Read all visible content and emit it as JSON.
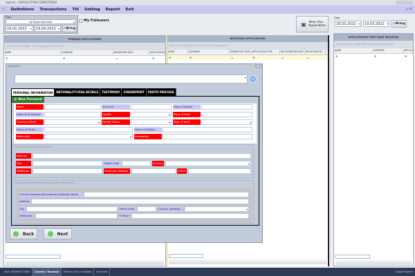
{
  "window": {
    "title": "Ajanter - [APPLICATION CONDITIONS]"
  },
  "menu": [
    "Definitions",
    "Transactions",
    "Till",
    "Setting",
    "Report",
    "Exit"
  ],
  "filter": {
    "group_label": "Date",
    "date_type": "By Registration Date",
    "from": "19.02.2022",
    "to": "19.04.2022",
    "bring": "Bring",
    "my_followers": "My Followers"
  },
  "new_visa": "New Visa Application",
  "pending": {
    "title": "PENDING APPLICATIONS",
    "hint": "Drag a column header here to group by that column",
    "columns": [
      "NAME",
      "SURNAME",
      "DEPARTURE DATE",
      "APPLICATION"
    ]
  },
  "resulting": {
    "title": "RESULTING APPLICATIONS",
    "hint": "Drag a column header here to group by that column",
    "columns": [
      "NAME",
      "SURNAME",
      "DEPARTURE DATE",
      "APPLICATION TYPE",
      "REGISTRATION DATE",
      "REGISTRATION"
    ]
  },
  "right": {
    "group_label": "Date",
    "from": "18.03.2022",
    "to": "19.03.2022",
    "bring": "Bring",
    "title": "APPLICATIONS THAT HAVE RESULTED",
    "hint": "Drag a column header here to group by that column",
    "columns": [
      "NAME",
      "SURNAME",
      "APPLICA"
    ]
  },
  "dialog": {
    "title": "Application",
    "tabs": [
      "PERSONAL INFORMATION",
      "NATIONALITY-VISA DETAILS",
      "TESTIMONY",
      "FINGERPRINT",
      "PHOTO PROCESS"
    ],
    "active_tab": 0,
    "new_personel": "New Personel",
    "personal": {
      "name": "Name",
      "surname": "Surname",
      "other_surname": "Other Surname",
      "national_id": "National Id Number",
      "gender": "Gender",
      "place_of_birth": "Place of Birth",
      "country_of_birth": "Country of Birth",
      "marital_status": "Marital Status",
      "date_of_birth": "Date Of Birth",
      "name_of_father": "Name of Father",
      "name_of_mother": "Name of Mother",
      "nationality": "Nationality",
      "occupation": "Occupation"
    },
    "contact": {
      "title": "Contact Information to Reach You",
      "address": "Address",
      "city": "City",
      "postal_code": "Postal Code",
      "country": "Country",
      "telephone": "Telephone",
      "telephone_mobile": "Telephone (Mobile)",
      "email": "E-Mail"
    },
    "employer": {
      "title": "Current Employer/Educational Institution Information",
      "name": "Current Employer/Educational Institution Name",
      "address": "Address",
      "city": "City",
      "postal_code": "Postal Code",
      "country": "Country (Address)",
      "telephone": "Telephone",
      "eposta": "E-Posta"
    },
    "back": "Back",
    "next": "Next"
  },
  "status": {
    "user": "User: MAHMUT CURA",
    "country": "Country: Tanzania",
    "branch": "Branch: Dar es Salaam",
    "licence": "Licenced",
    "style": "Choose Style ▾"
  }
}
